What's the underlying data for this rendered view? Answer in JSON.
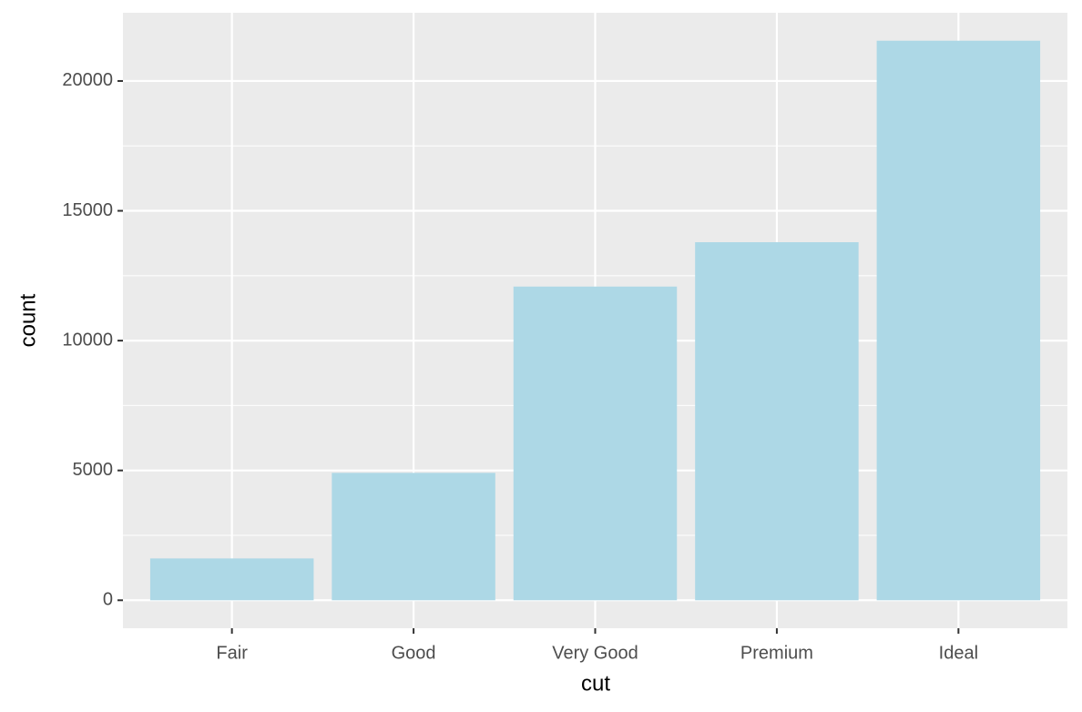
{
  "chart_data": {
    "type": "bar",
    "x_label": "cut",
    "y_label": "count",
    "categories": [
      "Fair",
      "Good",
      "Very Good",
      "Premium",
      "Ideal"
    ],
    "values": [
      1610,
      4906,
      12082,
      13791,
      21551
    ],
    "color": "#add8e6",
    "ylim": [
      -1077.55,
      22628.55
    ],
    "yticks": [
      0,
      5000,
      10000,
      15000,
      20000
    ],
    "grid": true
  }
}
